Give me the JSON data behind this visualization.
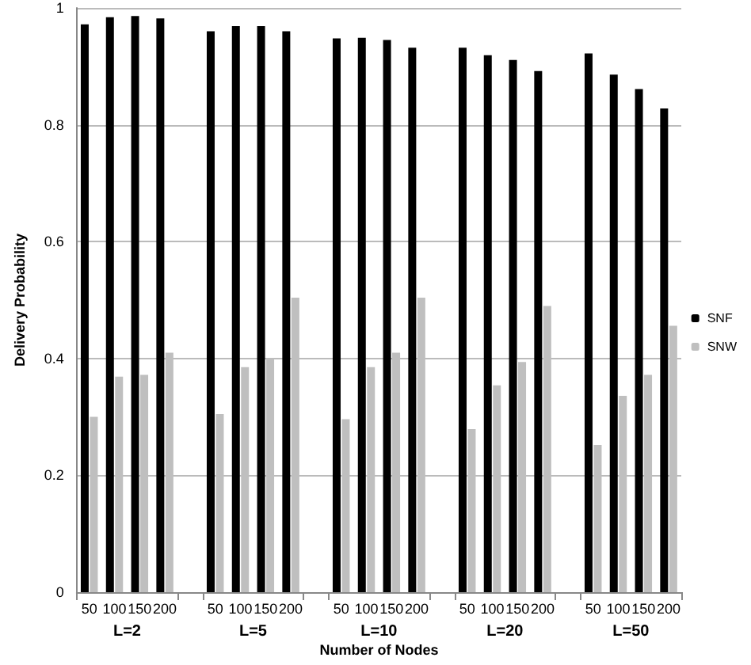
{
  "chart_data": {
    "type": "bar",
    "xlabel": "Number of Nodes",
    "ylabel": "Delivery Probability",
    "categories": [
      "50",
      "100",
      "150",
      "200",
      null,
      "50",
      "100",
      "150",
      "200",
      null,
      "50",
      "100",
      "150",
      "200",
      null,
      "50",
      "100",
      "150",
      "200",
      null,
      "50",
      "100",
      "150",
      "200"
    ],
    "series": [
      {
        "name": "SNF",
        "color": "#000000",
        "values": [
          0.972,
          0.984,
          0.986,
          0.982,
          null,
          0.96,
          0.969,
          0.969,
          0.96,
          null,
          0.948,
          0.949,
          0.945,
          0.932,
          null,
          0.932,
          0.919,
          0.911,
          0.892,
          null,
          0.922,
          0.886,
          0.861,
          0.828
        ]
      },
      {
        "name": "SNW",
        "color": "#bfbfbf",
        "values": [
          0.3,
          0.369,
          0.372,
          0.41,
          null,
          0.305,
          0.385,
          0.4,
          0.504,
          null,
          0.296,
          0.385,
          0.41,
          0.504,
          null,
          0.279,
          0.354,
          0.394,
          0.49,
          null,
          0.252,
          0.336,
          0.372,
          0.456
        ]
      }
    ],
    "annotations": [
      "L=2",
      "L=5",
      "L=10",
      "L=20",
      "L=50"
    ],
    "ylim": [
      0,
      1
    ],
    "yticks": [
      0,
      0.2,
      0.4,
      0.6,
      0.8,
      1
    ],
    "grid": "y",
    "legend": "right"
  }
}
